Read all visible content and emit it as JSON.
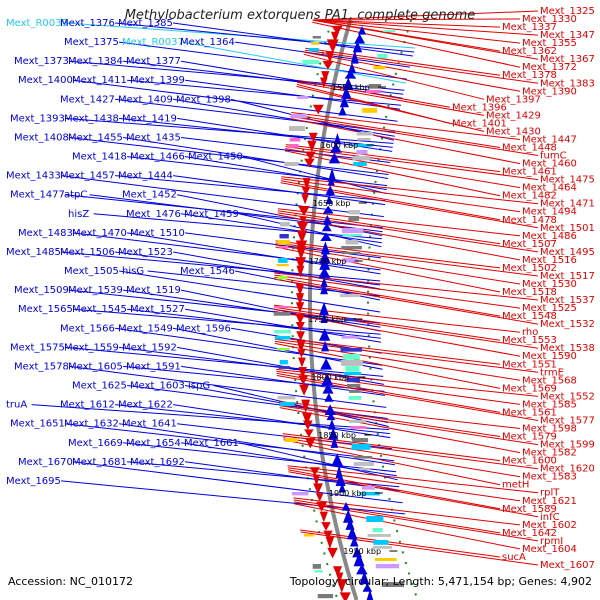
{
  "title": "Methylobacterium extorquens PA1, complete genome",
  "accession_text": "Accession: NC_010172",
  "topology_text": "Topology: circular; Length: 5,471,154 bp; Genes: 4,902",
  "colors": {
    "reverse_strand": "#0000dd",
    "forward_strand": "#e00000",
    "rna": "#22ccee",
    "backbone": "#888888",
    "dots": "#228822"
  },
  "kbp_ticks": [
    {
      "label": "1550 kbp"
    },
    {
      "label": "1600 kbp"
    },
    {
      "label": "1650 kbp"
    },
    {
      "label": "1700 kbp"
    },
    {
      "label": "1750 kbp"
    },
    {
      "label": "1800 kbp"
    },
    {
      "label": "1850 kbp"
    },
    {
      "label": "1900 kbp"
    },
    {
      "label": "1950 kbp"
    }
  ],
  "left_labels": [
    {
      "text": "Mext_R0039",
      "kind": "rna"
    },
    {
      "text": "Mext_1376",
      "kind": "gene"
    },
    {
      "text": "Mext_1385",
      "kind": "gene"
    },
    {
      "text": "Mext_1375",
      "kind": "gene"
    },
    {
      "text": "Mext_R0037",
      "kind": "rna"
    },
    {
      "text": "Mext_1364",
      "kind": "gene"
    },
    {
      "text": "Mext_1373",
      "kind": "gene"
    },
    {
      "text": "Mext_1384",
      "kind": "gene"
    },
    {
      "text": "Mext_1377",
      "kind": "gene"
    },
    {
      "text": "Mext_1400",
      "kind": "gene"
    },
    {
      "text": "Mext_1411",
      "kind": "gene"
    },
    {
      "text": "Mext_1399",
      "kind": "gene"
    },
    {
      "text": "Mext_1427",
      "kind": "gene"
    },
    {
      "text": "Mext_1409",
      "kind": "gene"
    },
    {
      "text": "Mext_1398",
      "kind": "gene"
    },
    {
      "text": "Mext_1393",
      "kind": "gene"
    },
    {
      "text": "Mext_1438",
      "kind": "gene"
    },
    {
      "text": "Mext_1419",
      "kind": "gene"
    },
    {
      "text": "Mext_1408",
      "kind": "gene"
    },
    {
      "text": "Mext_1455",
      "kind": "gene"
    },
    {
      "text": "Mext_1435",
      "kind": "gene"
    },
    {
      "text": "Mext_1418",
      "kind": "gene"
    },
    {
      "text": "Mext_1466",
      "kind": "gene"
    },
    {
      "text": "Mext_1450",
      "kind": "gene"
    },
    {
      "text": "Mext_1433",
      "kind": "gene"
    },
    {
      "text": "Mext_1457",
      "kind": "gene"
    },
    {
      "text": "Mext_1444",
      "kind": "gene"
    },
    {
      "text": "Mext_1477",
      "kind": "gene"
    },
    {
      "text": "atpC",
      "kind": "gene"
    },
    {
      "text": "Mext_1452",
      "kind": "gene"
    },
    {
      "text": "hisZ",
      "kind": "gene"
    },
    {
      "text": "Mext_1476",
      "kind": "gene"
    },
    {
      "text": "Mext_1459",
      "kind": "gene"
    },
    {
      "text": "Mext_1483",
      "kind": "gene"
    },
    {
      "text": "Mext_1470",
      "kind": "gene"
    },
    {
      "text": "Mext_1510",
      "kind": "gene"
    },
    {
      "text": "Mext_1485",
      "kind": "gene"
    },
    {
      "text": "Mext_1506",
      "kind": "gene"
    },
    {
      "text": "Mext_1523",
      "kind": "gene"
    },
    {
      "text": "Mext_1505",
      "kind": "gene"
    },
    {
      "text": "hisG",
      "kind": "gene"
    },
    {
      "text": "Mext_1546",
      "kind": "gene"
    },
    {
      "text": "Mext_1509",
      "kind": "gene"
    },
    {
      "text": "Mext_1539",
      "kind": "gene"
    },
    {
      "text": "Mext_1519",
      "kind": "gene"
    },
    {
      "text": "Mext_1565",
      "kind": "gene"
    },
    {
      "text": "Mext_1545",
      "kind": "gene"
    },
    {
      "text": "Mext_1527",
      "kind": "gene"
    },
    {
      "text": "Mext_1566",
      "kind": "gene"
    },
    {
      "text": "Mext_1549",
      "kind": "gene"
    },
    {
      "text": "Mext_1596",
      "kind": "gene"
    },
    {
      "text": "Mext_1575",
      "kind": "gene"
    },
    {
      "text": "Mext_1559",
      "kind": "gene"
    },
    {
      "text": "Mext_1592",
      "kind": "gene"
    },
    {
      "text": "Mext_1578",
      "kind": "gene"
    },
    {
      "text": "Mext_1605",
      "kind": "gene"
    },
    {
      "text": "Mext_1591",
      "kind": "gene"
    },
    {
      "text": "Mext_1625",
      "kind": "gene"
    },
    {
      "text": "Mext_1603",
      "kind": "gene"
    },
    {
      "text": "ispG",
      "kind": "gene"
    },
    {
      "text": "truA",
      "kind": "gene"
    },
    {
      "text": "Mext_1612",
      "kind": "gene"
    },
    {
      "text": "Mext_1622",
      "kind": "gene"
    },
    {
      "text": "Mext_1651",
      "kind": "gene"
    },
    {
      "text": "Mext_1632",
      "kind": "gene"
    },
    {
      "text": "Mext_1641",
      "kind": "gene"
    },
    {
      "text": "Mext_1669",
      "kind": "gene"
    },
    {
      "text": "Mext_1654",
      "kind": "gene"
    },
    {
      "text": "Mext_1661",
      "kind": "gene"
    },
    {
      "text": "Mext_1670",
      "kind": "gene"
    },
    {
      "text": "Mext_1681",
      "kind": "gene"
    },
    {
      "text": "Mext_1692",
      "kind": "gene"
    },
    {
      "text": "Mext_1695",
      "kind": "gene"
    }
  ],
  "right_labels": [
    {
      "text": "Mext_1325"
    },
    {
      "text": "Mext_1330"
    },
    {
      "text": "Mext_1337"
    },
    {
      "text": "Mext_1347"
    },
    {
      "text": "Mext_1355"
    },
    {
      "text": "Mext_1362"
    },
    {
      "text": "Mext_1367"
    },
    {
      "text": "Mext_1372"
    },
    {
      "text": "Mext_1378"
    },
    {
      "text": "Mext_1383"
    },
    {
      "text": "Mext_1390"
    },
    {
      "text": "Mext_1397"
    },
    {
      "text": "Mext_1396"
    },
    {
      "text": "Mext_1429"
    },
    {
      "text": "Mext_1401"
    },
    {
      "text": "Mext_1430"
    },
    {
      "text": "Mext_1447"
    },
    {
      "text": "Mext_1448"
    },
    {
      "text": "fumC"
    },
    {
      "text": "Mext_1460"
    },
    {
      "text": "Mext_1461"
    },
    {
      "text": "Mext_1475"
    },
    {
      "text": "Mext_1464"
    },
    {
      "text": "Mext_1482"
    },
    {
      "text": "Mext_1471"
    },
    {
      "text": "Mext_1494"
    },
    {
      "text": "Mext_1478"
    },
    {
      "text": "Mext_1501"
    },
    {
      "text": "Mext_1486"
    },
    {
      "text": "Mext_1507"
    },
    {
      "text": "Mext_1495"
    },
    {
      "text": "Mext_1516"
    },
    {
      "text": "Mext_1502"
    },
    {
      "text": "Mext_1517"
    },
    {
      "text": "Mext_1530"
    },
    {
      "text": "Mext_1518"
    },
    {
      "text": "Mext_1537"
    },
    {
      "text": "Mext_1525"
    },
    {
      "text": "Mext_1548"
    },
    {
      "text": "Mext_1532"
    },
    {
      "text": "rho"
    },
    {
      "text": "Mext_1553"
    },
    {
      "text": "Mext_1538"
    },
    {
      "text": "Mext_1590"
    },
    {
      "text": "Mext_1551"
    },
    {
      "text": "trmE"
    },
    {
      "text": "Mext_1568"
    },
    {
      "text": "Mext_1569"
    },
    {
      "text": "Mext_1552"
    },
    {
      "text": "Mext_1585"
    },
    {
      "text": "Mext_1561"
    },
    {
      "text": "Mext_1577"
    },
    {
      "text": "Mext_1598"
    },
    {
      "text": "Mext_1579"
    },
    {
      "text": "Mext_1599"
    },
    {
      "text": "Mext_1582"
    },
    {
      "text": "Mext_1600"
    },
    {
      "text": "Mext_1620"
    },
    {
      "text": "Mext_1583"
    },
    {
      "text": "metH"
    },
    {
      "text": "rplT"
    },
    {
      "text": "Mext_1621"
    },
    {
      "text": "Mext_1589"
    },
    {
      "text": "infC"
    },
    {
      "text": "Mext_1602"
    },
    {
      "text": "Mext_1642"
    },
    {
      "text": "rpmI"
    },
    {
      "text": "Mext_1604"
    },
    {
      "text": "sucA"
    },
    {
      "text": "Mext_1607"
    }
  ]
}
